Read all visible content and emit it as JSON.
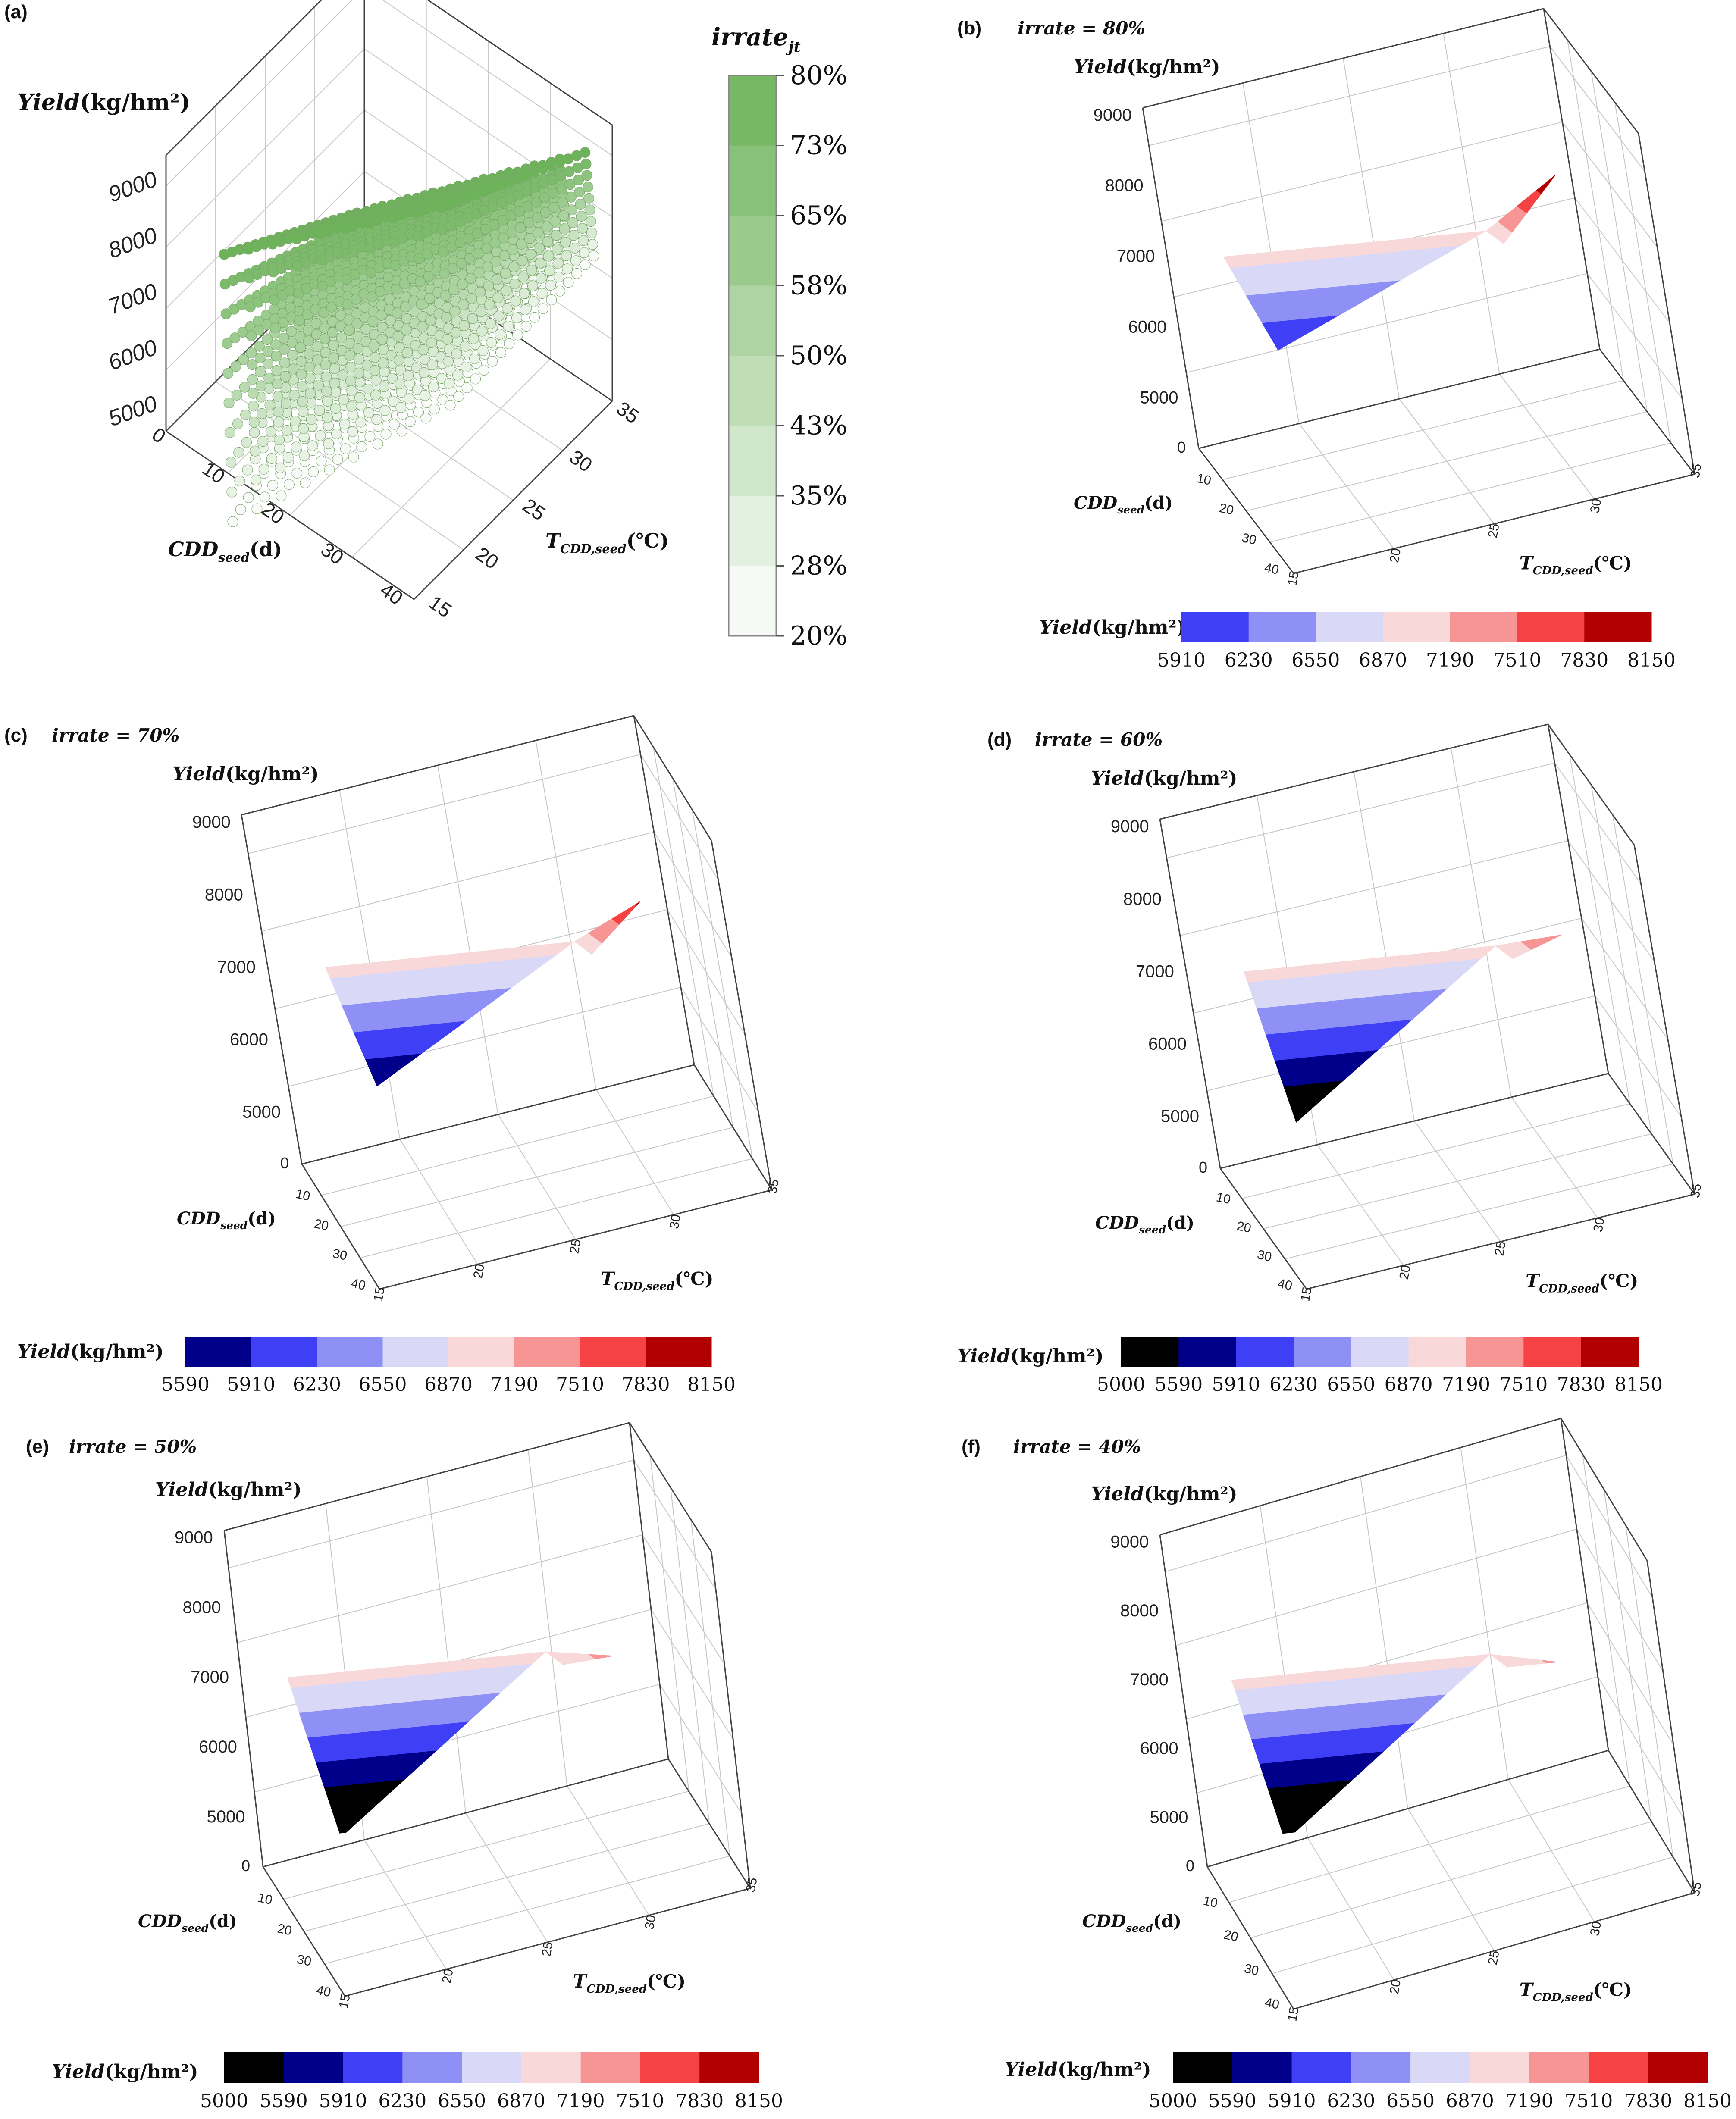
{
  "colors": {
    "black": "#000000",
    "navy": "#00008b",
    "blue": "#3f3ff5",
    "mid_blue": "#8f90f5",
    "pale_blue": "#d9d9f7",
    "pale_pink": "#f8d8d8",
    "salmon": "#f79595",
    "red": "#f54242",
    "dark_red": "#b20000",
    "green_hi": "#6db35a",
    "green_lo": "#ffffff"
  },
  "chart_data": [
    {
      "id": "a",
      "panel_label": "(a)",
      "type": "scatter3d",
      "title": "",
      "zlabel": "Yield",
      "zunit": "(kg/hm²)",
      "xlabel_main": "CDD",
      "xlabel_sub": "seed",
      "xlabel_unit": "(d)",
      "ylabel_main": "T",
      "ylabel_sub": "CDD,seed",
      "ylabel_unit": "(℃)",
      "ztick_labels": [
        "5000",
        "6000",
        "7000",
        "8000",
        "9000"
      ],
      "xtick_labels": [
        "0",
        "10",
        "20",
        "30",
        "40"
      ],
      "ytick_labels": [
        "15",
        "20",
        "25",
        "30",
        "35"
      ],
      "zlim": [
        5000,
        9000
      ],
      "xlim": [
        0,
        40
      ],
      "ylim": [
        15,
        35
      ],
      "color_variable_main": "irrate",
      "color_variable_sub": "jt",
      "colorbar_ticks": [
        "80%",
        "73%",
        "65%",
        "58%",
        "50%",
        "43%",
        "35%",
        "28%",
        "20%"
      ],
      "note": "points coloured by irrigation rate from 20% (white) to 80% (green)"
    },
    {
      "id": "b",
      "panel_label": "(b)",
      "type": "surface3d",
      "title": "irrate = 80%",
      "irrate": 80,
      "zlabel": "Yield",
      "zunit": "(kg/hm²)",
      "xlabel_main": "CDD",
      "xlabel_sub": "seed",
      "xlabel_unit": "(d)",
      "ylabel_main": "T",
      "ylabel_sub": "CDD,seed",
      "ylabel_unit": "(℃)",
      "ztick_labels": [
        "5000",
        "6000",
        "7000",
        "8000",
        "9000"
      ],
      "xtick_labels": [
        "0",
        "10",
        "20",
        "30",
        "40"
      ],
      "ytick_labels": [
        "15",
        "20",
        "25",
        "30",
        "35"
      ],
      "zlim": [
        5000,
        9000
      ],
      "xlim": [
        0,
        40
      ],
      "ylim": [
        15,
        35
      ],
      "surface_range": [
        5910,
        8150
      ],
      "colorbar_label": "Yield",
      "colorbar_unit": "(kg/hm²)",
      "colorbar_ticks": [
        "5910",
        "6230",
        "6550",
        "6870",
        "7190",
        "7510",
        "7830",
        "8150"
      ],
      "colorbar_colors": [
        "#3f3ff5",
        "#8f90f5",
        "#d9d9f7",
        "#f8d8d8",
        "#f79595",
        "#f54242",
        "#b20000"
      ]
    },
    {
      "id": "c",
      "panel_label": "(c)",
      "type": "surface3d",
      "title": "irrate = 70%",
      "irrate": 70,
      "zlabel": "Yield",
      "zunit": "(kg/hm²)",
      "xlabel_main": "CDD",
      "xlabel_sub": "seed",
      "xlabel_unit": "(d)",
      "ylabel_main": "T",
      "ylabel_sub": "CDD,seed",
      "ylabel_unit": "(℃)",
      "ztick_labels": [
        "5000",
        "6000",
        "7000",
        "8000",
        "9000"
      ],
      "xtick_labels": [
        "0",
        "10",
        "20",
        "30",
        "40"
      ],
      "ytick_labels": [
        "15",
        "20",
        "25",
        "30",
        "35"
      ],
      "zlim": [
        5000,
        9000
      ],
      "xlim": [
        0,
        40
      ],
      "ylim": [
        15,
        35
      ],
      "surface_range": [
        5590,
        7900
      ],
      "colorbar_label": "Yield",
      "colorbar_unit": "(kg/hm²)",
      "colorbar_ticks": [
        "5590",
        "5910",
        "6230",
        "6550",
        "6870",
        "7190",
        "7510",
        "7830",
        "8150"
      ],
      "colorbar_colors": [
        "#00008b",
        "#3f3ff5",
        "#8f90f5",
        "#d9d9f7",
        "#f8d8d8",
        "#f79595",
        "#f54242",
        "#b20000"
      ]
    },
    {
      "id": "d",
      "panel_label": "(d)",
      "type": "surface3d",
      "title": "irrate = 60%",
      "irrate": 60,
      "zlabel": "Yield",
      "zunit": "(kg/hm²)",
      "xlabel_main": "CDD",
      "xlabel_sub": "seed",
      "xlabel_unit": "(d)",
      "ylabel_main": "T",
      "ylabel_sub": "CDD,seed",
      "ylabel_unit": "(℃)",
      "ztick_labels": [
        "5000",
        "6000",
        "7000",
        "8000",
        "9000"
      ],
      "xtick_labels": [
        "0",
        "10",
        "20",
        "30",
        "40"
      ],
      "ytick_labels": [
        "15",
        "20",
        "25",
        "30",
        "35"
      ],
      "zlim": [
        5000,
        9000
      ],
      "xlim": [
        0,
        40
      ],
      "ylim": [
        15,
        35
      ],
      "surface_range": [
        5150,
        7500
      ],
      "colorbar_label": "Yield",
      "colorbar_unit": "(kg/hm²)",
      "colorbar_ticks": [
        "5000",
        "5590",
        "5910",
        "6230",
        "6550",
        "6870",
        "7190",
        "7510",
        "7830",
        "8150"
      ],
      "colorbar_colors": [
        "#000000",
        "#00008b",
        "#3f3ff5",
        "#8f90f5",
        "#d9d9f7",
        "#f8d8d8",
        "#f79595",
        "#f54242",
        "#b20000"
      ]
    },
    {
      "id": "e",
      "panel_label": "(e)",
      "type": "surface3d",
      "title": "irrate = 50%",
      "irrate": 50,
      "zlabel": "Yield",
      "zunit": "(kg/hm²)",
      "xlabel_main": "CDD",
      "xlabel_sub": "seed",
      "xlabel_unit": "(d)",
      "ylabel_main": "T",
      "ylabel_sub": "CDD,seed",
      "ylabel_unit": "(℃)",
      "ztick_labels": [
        "5000",
        "6000",
        "7000",
        "8000",
        "9000"
      ],
      "xtick_labels": [
        "0",
        "10",
        "20",
        "30",
        "40"
      ],
      "ytick_labels": [
        "15",
        "20",
        "25",
        "30",
        "35"
      ],
      "zlim": [
        5000,
        9000
      ],
      "xlim": [
        0,
        40
      ],
      "ylim": [
        15,
        35
      ],
      "surface_range": [
        4950,
        7300
      ],
      "colorbar_label": "Yield",
      "colorbar_unit": "(kg/hm²)",
      "colorbar_ticks": [
        "5000",
        "5590",
        "5910",
        "6230",
        "6550",
        "6870",
        "7190",
        "7510",
        "7830",
        "8150"
      ],
      "colorbar_colors": [
        "#000000",
        "#00008b",
        "#3f3ff5",
        "#8f90f5",
        "#d9d9f7",
        "#f8d8d8",
        "#f79595",
        "#f54242",
        "#b20000"
      ]
    },
    {
      "id": "f",
      "panel_label": "(f)",
      "type": "surface3d",
      "title": "irrate = 40%",
      "irrate": 40,
      "zlabel": "Yield",
      "zunit": "(kg/hm²)",
      "xlabel_main": "CDD",
      "xlabel_sub": "seed",
      "xlabel_unit": "(d)",
      "ylabel_main": "T",
      "ylabel_sub": "CDD,seed",
      "ylabel_unit": "(℃)",
      "ztick_labels": [
        "5000",
        "6000",
        "7000",
        "8000",
        "9000"
      ],
      "xtick_labels": [
        "0",
        "10",
        "20",
        "30",
        "40"
      ],
      "ytick_labels": [
        "15",
        "20",
        "25",
        "30",
        "35"
      ],
      "zlim": [
        5000,
        9000
      ],
      "xlim": [
        0,
        40
      ],
      "ylim": [
        15,
        35
      ],
      "surface_range": [
        4900,
        7250
      ],
      "colorbar_label": "Yield",
      "colorbar_unit": "(kg/hm²)",
      "colorbar_ticks": [
        "5000",
        "5590",
        "5910",
        "6230",
        "6550",
        "6870",
        "7190",
        "7510",
        "7830",
        "8150"
      ],
      "colorbar_colors": [
        "#000000",
        "#00008b",
        "#3f3ff5",
        "#8f90f5",
        "#d9d9f7",
        "#f8d8d8",
        "#f79595",
        "#f54242",
        "#b20000"
      ]
    }
  ]
}
